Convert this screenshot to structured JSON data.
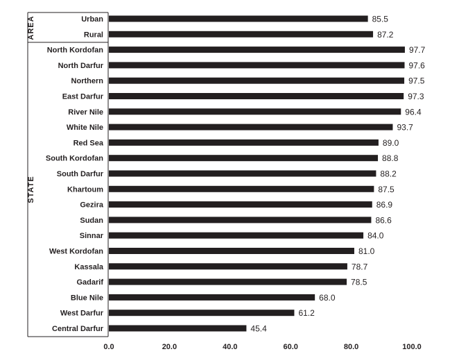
{
  "chart_data": {
    "type": "bar",
    "orientation": "horizontal",
    "groups": [
      {
        "label": "AREA",
        "categories": [
          "Urban",
          "Rural"
        ]
      },
      {
        "label": "STATE",
        "categories": [
          "North Kordofan",
          "North Darfur",
          "Northern",
          "East Darfur",
          "River Nile",
          "White Nile",
          "Red Sea",
          "South Kordofan",
          "South Darfur",
          "Khartoum",
          "Gezira",
          "Sudan",
          "Sinnar",
          "West Kordofan",
          "Kassala",
          "Gadarif",
          "Blue Nile",
          "West Darfur",
          "Central Darfur"
        ]
      }
    ],
    "categories": [
      "Urban",
      "Rural",
      "North Kordofan",
      "North Darfur",
      "Northern",
      "East Darfur",
      "River Nile",
      "White Nile",
      "Red Sea",
      "South Kordofan",
      "South Darfur",
      "Khartoum",
      "Gezira",
      "Sudan",
      "Sinnar",
      "West Kordofan",
      "Kassala",
      "Gadarif",
      "Blue Nile",
      "West Darfur",
      "Central Darfur"
    ],
    "values": [
      85.5,
      87.2,
      97.7,
      97.6,
      97.5,
      97.3,
      96.4,
      93.7,
      89.0,
      88.8,
      88.2,
      87.5,
      86.9,
      86.6,
      84.0,
      81.0,
      78.7,
      78.5,
      68.0,
      61.2,
      45.4
    ],
    "value_labels": [
      "85.5",
      "87.2",
      "97.7",
      "97.6",
      "97.5",
      "97.3",
      "96.4",
      "93.7",
      "89.0",
      "88.8",
      "88.2",
      "87.5",
      "86.9",
      "86.6",
      "84.0",
      "81.0",
      "78.7",
      "78.5",
      "68.0",
      "61.2",
      "45.4"
    ],
    "x_ticks": [
      0,
      20,
      40,
      60,
      80,
      100
    ],
    "x_tick_labels": [
      "0.0",
      "20.0",
      "40.0",
      "60.0",
      "80.0",
      "100.0"
    ],
    "xlim": [
      0,
      100
    ],
    "title": "",
    "xlabel": "",
    "ylabel": "",
    "grid": false,
    "bar_color": "#231f20"
  }
}
